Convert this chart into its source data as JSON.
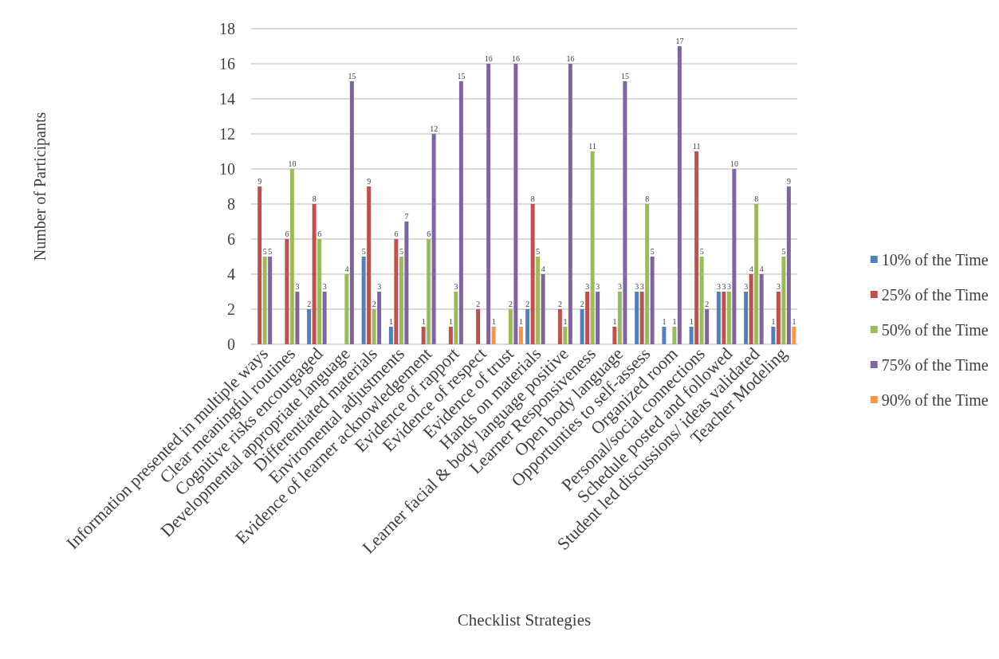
{
  "chart_data": {
    "type": "bar",
    "xlabel": "Checklist Strategies",
    "ylabel": "Number of Participants",
    "categories": [
      "Information presented in multiple ways",
      "Clear meaningful routines",
      "Cognitive risks encourgaged",
      "Developmental appropriate language",
      "Differentiated materials",
      "Enviromental adjustments",
      "Evidence of learner acknowledgement",
      "Evidence of rapport",
      "Evidence of respect",
      "Evidence of trust",
      "Hands on materials",
      "Learner facial & body language positive",
      "Learner Responsiveness",
      "Open body language",
      "Opportunties to self-assess",
      "Organized room",
      "Personal/social connections",
      "Schedule posted and followed",
      "Student led discussions/ ideas validated",
      "Teacher Modeling"
    ],
    "series": [
      {
        "name": "10% of the Time",
        "color": "#4f81bd",
        "values": [
          null,
          null,
          2,
          null,
          5,
          1,
          null,
          null,
          null,
          null,
          2,
          null,
          2,
          null,
          3,
          1,
          1,
          3,
          3,
          1
        ]
      },
      {
        "name": "25% of the Time",
        "color": "#c0504d",
        "values": [
          9,
          6,
          8,
          null,
          9,
          6,
          1,
          1,
          2,
          null,
          8,
          2,
          3,
          1,
          3,
          null,
          11,
          3,
          4,
          3
        ]
      },
      {
        "name": "50% of the Time",
        "color": "#9bbb59",
        "values": [
          5,
          10,
          6,
          4,
          2,
          5,
          6,
          3,
          null,
          2,
          5,
          1,
          11,
          3,
          8,
          1,
          5,
          3,
          8,
          5
        ]
      },
      {
        "name": "75% of the Time",
        "color": "#8064a2",
        "values": [
          5,
          3,
          3,
          15,
          3,
          7,
          12,
          15,
          16,
          16,
          4,
          16,
          3,
          15,
          5,
          17,
          2,
          10,
          4,
          9
        ]
      },
      {
        "name": "90% of the Time",
        "color": "#f79646",
        "values": [
          null,
          null,
          null,
          null,
          null,
          null,
          null,
          null,
          1,
          1,
          null,
          null,
          null,
          null,
          null,
          null,
          null,
          null,
          null,
          1
        ]
      }
    ],
    "ylim": [
      0,
      18
    ],
    "yticks": [
      0,
      2,
      4,
      6,
      8,
      10,
      12,
      14,
      16,
      18
    ],
    "grid": "y",
    "legend": "right",
    "data_labels": true
  }
}
